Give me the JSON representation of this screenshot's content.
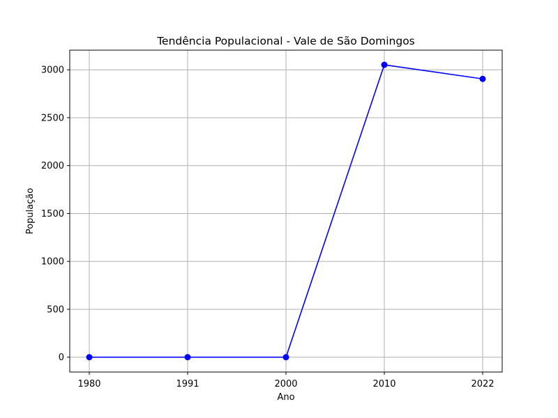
{
  "chart_data": {
    "type": "line",
    "title": "Tendência Populacional - Vale de São Domingos",
    "xlabel": "Ano",
    "ylabel": "População",
    "x_tick_labels": [
      "1980",
      "1991",
      "2000",
      "2010",
      "2022"
    ],
    "y_ticks": [
      0,
      500,
      1000,
      1500,
      2000,
      2500,
      3000
    ],
    "ylim": [
      -155,
      3205
    ],
    "grid": true,
    "marker": "circle",
    "series": [
      {
        "color": "#0000ff",
        "values": [
          0,
          0,
          0,
          3052,
          2905
        ]
      }
    ]
  }
}
